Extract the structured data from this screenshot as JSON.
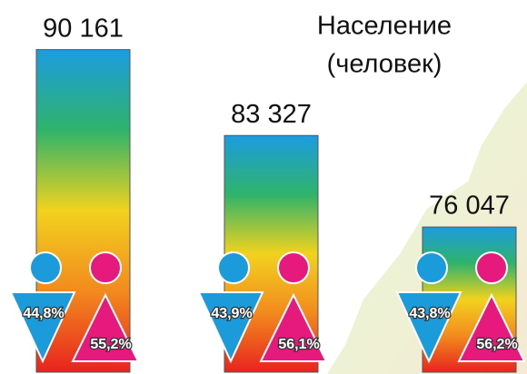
{
  "chart_data": {
    "type": "bar",
    "title": "Население",
    "subtitle": "(человек)",
    "categories": [
      null,
      null,
      null
    ],
    "values": [
      90161,
      83327,
      76047
    ],
    "value_labels": [
      "90 161",
      "83 327",
      "76 047"
    ],
    "colors": [
      "#1c9ce0",
      "#2fb36a",
      "#f2d21e",
      "#f28a1e",
      "#e8231f"
    ],
    "ylim": [
      64500,
      91000
    ],
    "shares": [
      {
        "color": "#1b9bd9",
        "values": [
          44.8,
          43.9,
          43.8
        ],
        "value_labels": [
          "44,8%",
          "43,9%",
          "43,8%"
        ]
      },
      {
        "color": "#e6197d",
        "values": [
          55.2,
          56.1,
          56.2
        ],
        "value_labels": [
          "55,2%",
          "56,1%",
          "56,2%"
        ]
      }
    ]
  }
}
